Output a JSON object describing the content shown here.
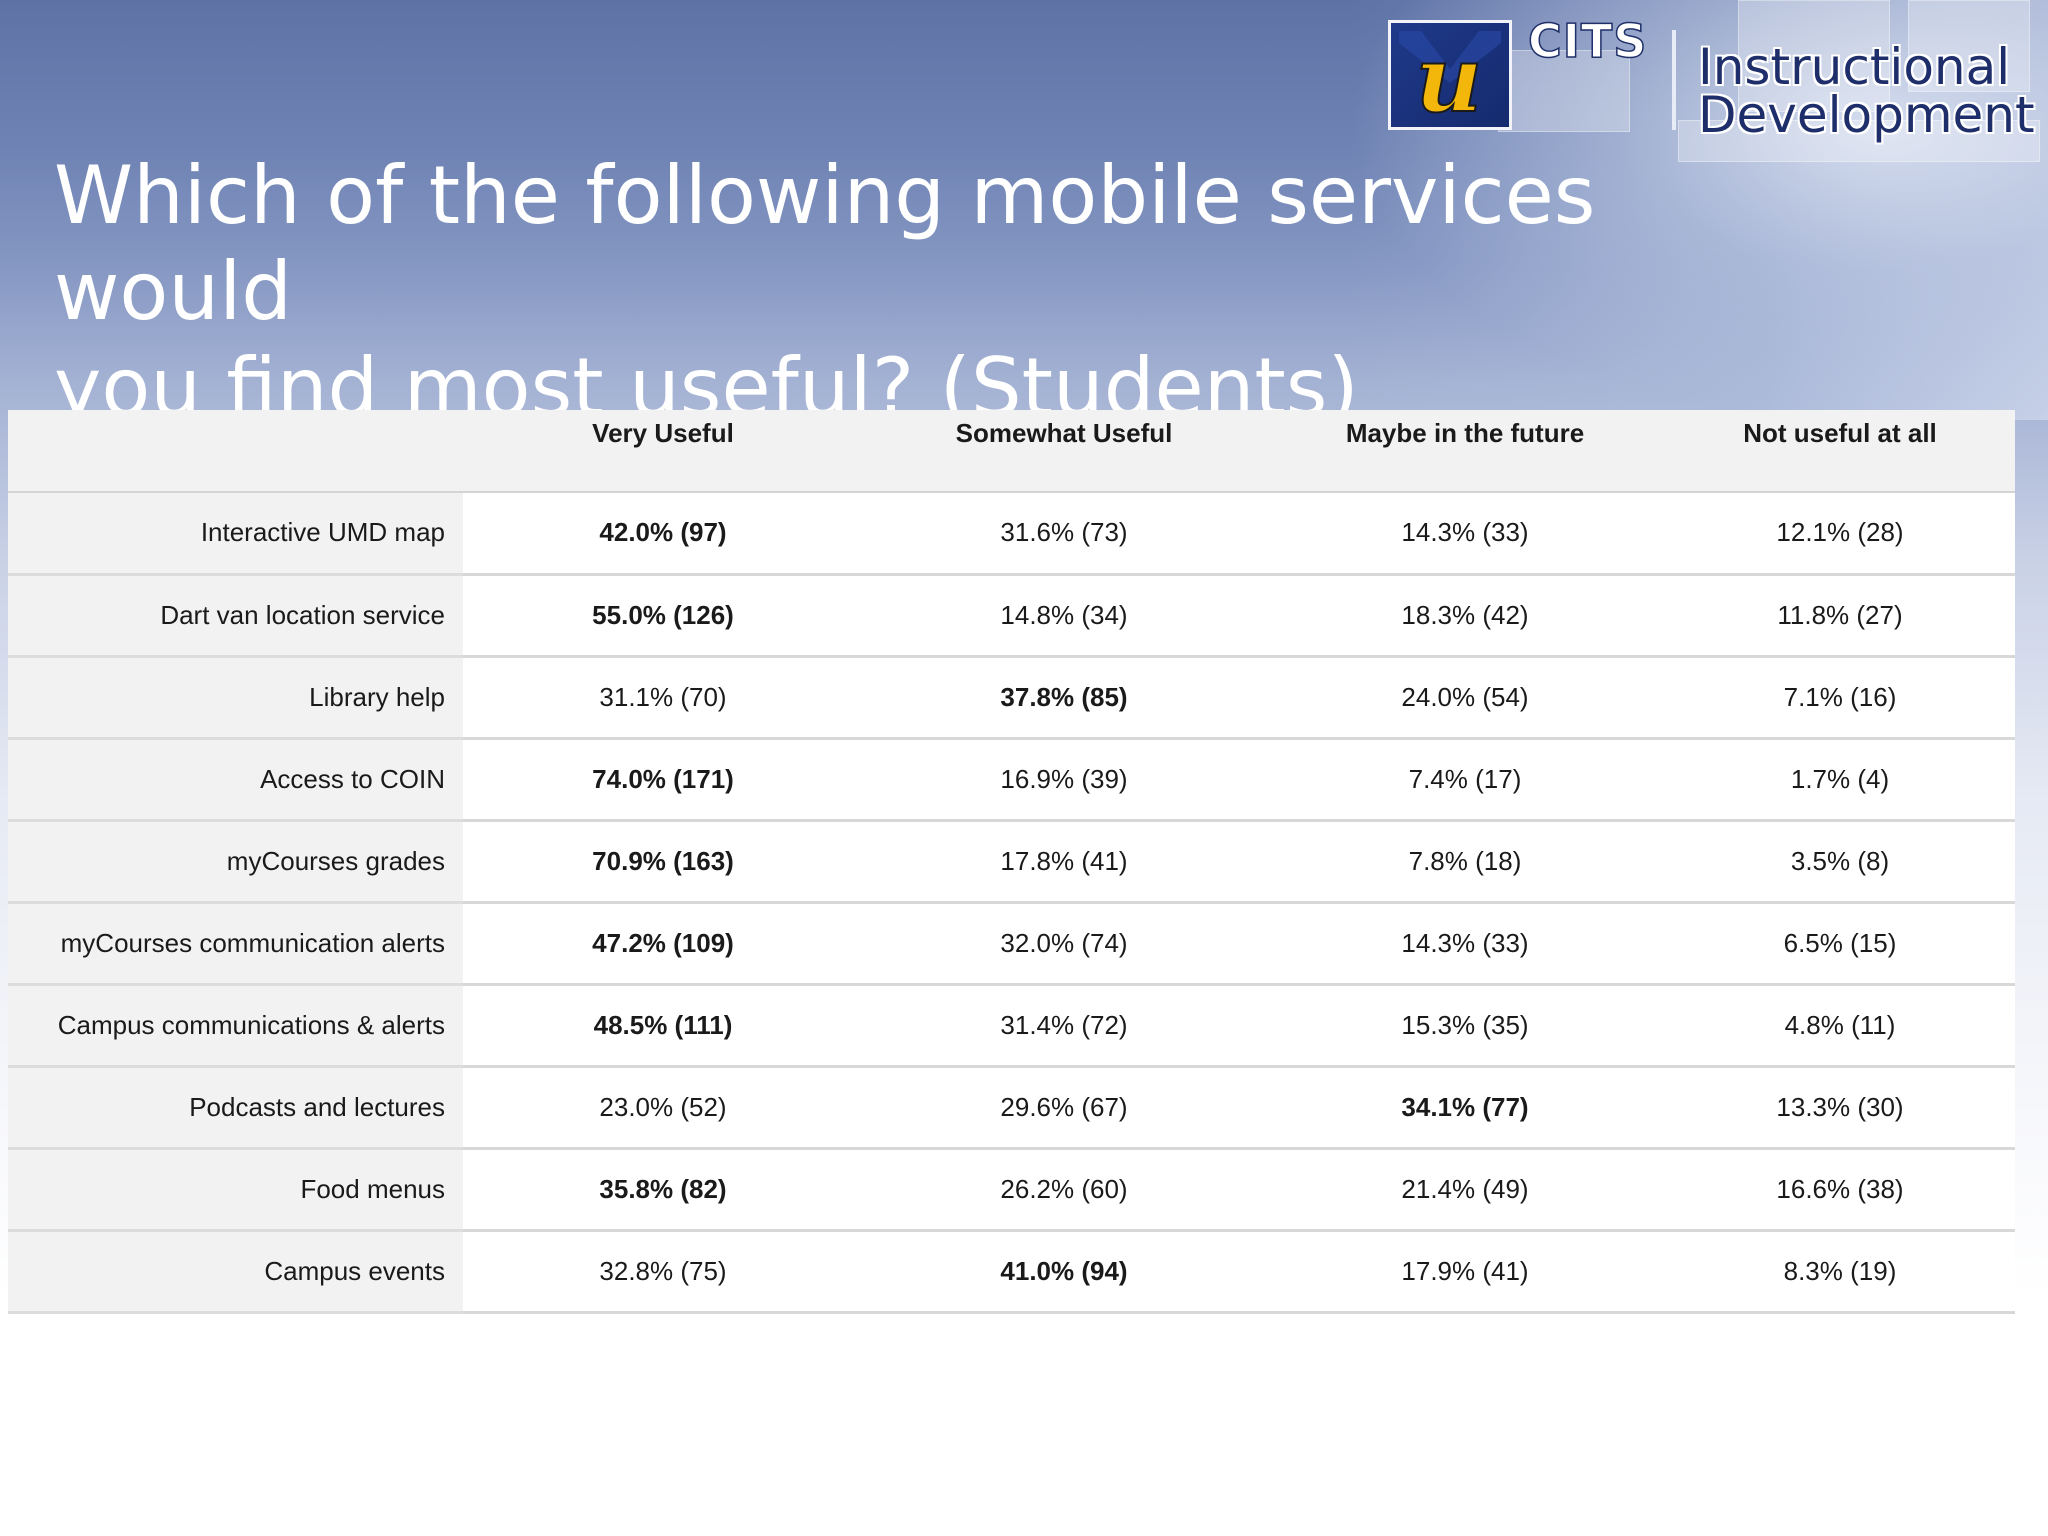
{
  "header": {
    "logo_letter": "u",
    "logo_brand": "CITS",
    "logo_line1": "Instructional",
    "logo_line2": "Development"
  },
  "slide": {
    "title_line1": "Which of the following mobile services would",
    "title_line2": "you find most useful? (Students)"
  },
  "colors": {
    "background_top": "#5e72a6",
    "logo_blue": "#1f3a8a",
    "logo_gold": "#f2b70a",
    "table_label_bg": "#f2f2f2"
  },
  "chart_data": {
    "type": "table",
    "columns": [
      "",
      "Very Useful",
      "Somewhat Useful",
      "Maybe in the future",
      "Not useful at all"
    ],
    "rows": [
      {
        "label": "Interactive UMD map",
        "cells": [
          "42.0% (97)",
          "31.6% (73)",
          "14.3% (33)",
          "12.1% (28)"
        ],
        "bold_index": 0
      },
      {
        "label": "Dart van location service",
        "cells": [
          "55.0% (126)",
          "14.8% (34)",
          "18.3% (42)",
          "11.8% (27)"
        ],
        "bold_index": 0
      },
      {
        "label": "Library help",
        "cells": [
          "31.1% (70)",
          "37.8% (85)",
          "24.0% (54)",
          "7.1% (16)"
        ],
        "bold_index": 1
      },
      {
        "label": "Access to COIN",
        "cells": [
          "74.0% (171)",
          "16.9% (39)",
          "7.4% (17)",
          "1.7% (4)"
        ],
        "bold_index": 0
      },
      {
        "label": "myCourses grades",
        "cells": [
          "70.9% (163)",
          "17.8% (41)",
          "7.8% (18)",
          "3.5% (8)"
        ],
        "bold_index": 0
      },
      {
        "label": "myCourses communication alerts",
        "cells": [
          "47.2% (109)",
          "32.0% (74)",
          "14.3% (33)",
          "6.5% (15)"
        ],
        "bold_index": 0
      },
      {
        "label": "Campus communications & alerts",
        "cells": [
          "48.5% (111)",
          "31.4% (72)",
          "15.3% (35)",
          "4.8% (11)"
        ],
        "bold_index": 0
      },
      {
        "label": "Podcasts and lectures",
        "cells": [
          "23.0% (52)",
          "29.6% (67)",
          "34.1% (77)",
          "13.3% (30)"
        ],
        "bold_index": 2
      },
      {
        "label": "Food menus",
        "cells": [
          "35.8% (82)",
          "26.2% (60)",
          "21.4% (49)",
          "16.6% (38)"
        ],
        "bold_index": 0
      },
      {
        "label": "Campus events",
        "cells": [
          "32.8% (75)",
          "41.0% (94)",
          "17.9% (41)",
          "8.3% (19)"
        ],
        "bold_index": 1
      }
    ]
  }
}
